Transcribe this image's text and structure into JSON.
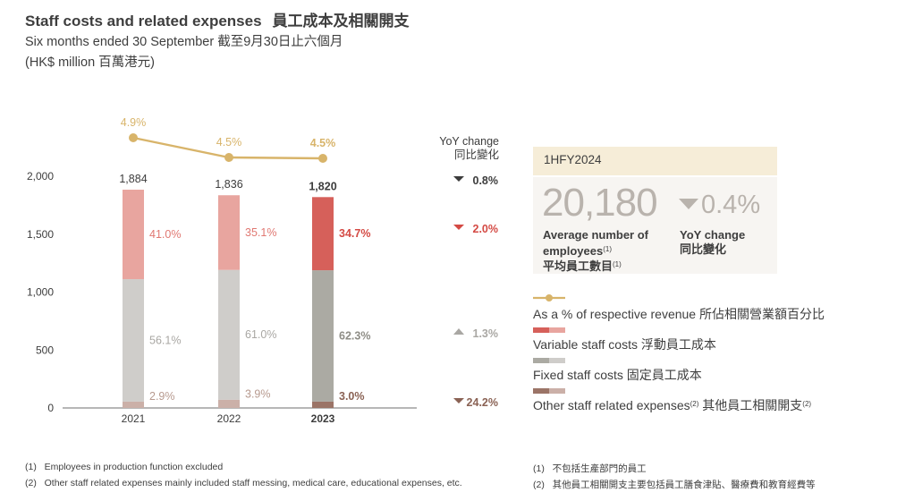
{
  "header": {
    "title_en": "Staff costs and related expenses",
    "title_zh": "員工成本及相關開支",
    "subtitle": "Six months ended 30 September 截至9月30日止六個月",
    "unit": "(HK$ million 百萬港元)"
  },
  "chart_data": {
    "type": "bar",
    "stacked": true,
    "categories": [
      "2021",
      "2022",
      "2023"
    ],
    "highlight_category": "2023",
    "y_ticks": [
      0,
      500,
      1000,
      1500,
      2000
    ],
    "y_tick_labels": [
      "0",
      "500",
      "1,000",
      "1,500",
      "2,000"
    ],
    "ylim": [
      0,
      2000
    ],
    "totals": [
      1884,
      1836,
      1820
    ],
    "total_labels": [
      "1,884",
      "1,836",
      "1,820"
    ],
    "series": [
      {
        "name": "Other staff related expenses⁽²⁾ 其他員工相關開支⁽²⁾",
        "share_labels": [
          "2.9%",
          "3.9%",
          "3.0%"
        ],
        "shares": [
          2.9,
          3.9,
          3.0
        ],
        "colors": [
          "#cbb0a8",
          "#cbb0a8",
          "#9b7467"
        ],
        "label_colors": [
          "#b79a8f",
          "#b79a8f",
          "#8a6254"
        ]
      },
      {
        "name": "Fixed staff costs 固定員工成本",
        "share_labels": [
          "56.1%",
          "61.0%",
          "62.3%"
        ],
        "shares": [
          56.1,
          61.0,
          62.3
        ],
        "colors": [
          "#cfcdca",
          "#cfcdca",
          "#abaaa3"
        ],
        "label_colors": [
          "#a9a7a3",
          "#a9a7a3",
          "#8e8d86"
        ]
      },
      {
        "name": "Variable staff costs 浮動員工成本",
        "share_labels": [
          "41.0%",
          "35.1%",
          "34.7%"
        ],
        "shares": [
          41.0,
          35.1,
          34.7
        ],
        "colors": [
          "#e8a59f",
          "#e8a59f",
          "#d6605a"
        ],
        "label_colors": [
          "#e07872",
          "#e07872",
          "#d44a44"
        ]
      }
    ],
    "line_series": {
      "name": "As a % of respective revenue 所佔相關營業額百分比",
      "values": [
        4.9,
        4.5,
        4.5
      ],
      "labels": [
        "4.9%",
        "4.5%",
        "4.5%"
      ],
      "color": "#d8b46a"
    },
    "yoy": {
      "header": [
        "YoY change",
        "同比變化"
      ],
      "rows": [
        {
          "for": "total",
          "direction": "down",
          "value": "0.8%",
          "color": "#3c3c3c"
        },
        {
          "for": "variable",
          "direction": "down",
          "value": "2.0%",
          "color": "#d44a44"
        },
        {
          "for": "fixed",
          "direction": "up",
          "value": "1.3%",
          "color": "#a9a7a3"
        },
        {
          "for": "other",
          "direction": "down",
          "value": "24.2%",
          "color": "#8a6254"
        }
      ]
    }
  },
  "kpi": {
    "period": "1HFY2024",
    "value": "20,180",
    "yoy": "0.4%",
    "label_line1": "Average number of",
    "label_line2": "employees",
    "label_fn": "(1)",
    "label_zh": "平均員工數目",
    "yoy_label_en": "YoY change",
    "yoy_label_zh": "同比變化"
  },
  "legend": [
    {
      "label": "As a % of respective revenue 所佔相關營業額百分比",
      "kind": "line",
      "color": "#d8b46a"
    },
    {
      "label": "Variable staff costs 浮動員工成本",
      "kind": "bar",
      "colors": [
        "#d6605a",
        "#e8a59f"
      ]
    },
    {
      "label": "Fixed staff costs 固定員工成本",
      "kind": "bar",
      "colors": [
        "#abaaa3",
        "#cfcdca"
      ]
    },
    {
      "label_main": "Other staff related expenses",
      "fn1": "(2)",
      "label_zh": " 其他員工相關開支",
      "fn2": "(2)",
      "kind": "bar",
      "colors": [
        "#9b7467",
        "#cbb0a8"
      ]
    }
  ],
  "footnotes": {
    "en": [
      {
        "num": "(1)",
        "text": "Employees in production function excluded"
      },
      {
        "num": "(2)",
        "text": "Other staff related expenses mainly included staff messing, medical care, educational expenses, etc."
      }
    ],
    "zh": [
      {
        "num": "(1)",
        "text": "不包括生產部門的員工"
      },
      {
        "num": "(2)",
        "text": "其他員工相關開支主要包括員工膳食津貼、醫療費和教育經費等"
      }
    ]
  }
}
